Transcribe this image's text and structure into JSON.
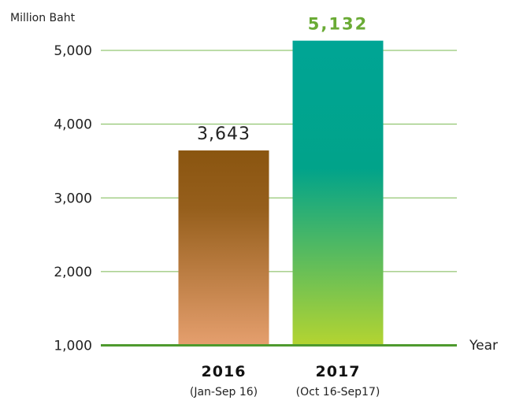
{
  "chart_data": {
    "type": "bar",
    "ylabel": "Million Baht",
    "xlabel": "Year",
    "ylim": [
      1000,
      5300
    ],
    "yticks": [
      1000,
      2000,
      3000,
      4000,
      5000
    ],
    "ytick_labels": [
      "1,000",
      "2,000",
      "3,000",
      "4,000",
      "5,000"
    ],
    "grid": true,
    "categories": [
      "2016",
      "2017"
    ],
    "category_subtitles": [
      "(Jan-Sep 16)",
      "(Oct 16-Sep17)"
    ],
    "values": [
      3643,
      5132
    ],
    "value_labels": [
      "3,643",
      "5,132"
    ],
    "highlight_color": "#6aab35",
    "colors": {
      "grid": "#7ab851",
      "axis": "#4e9a2e",
      "bar_2016": [
        "#8a5510",
        "#e59f6e"
      ],
      "bar_2017": [
        "#00a595",
        "#00a089",
        "#b4d431"
      ]
    }
  }
}
